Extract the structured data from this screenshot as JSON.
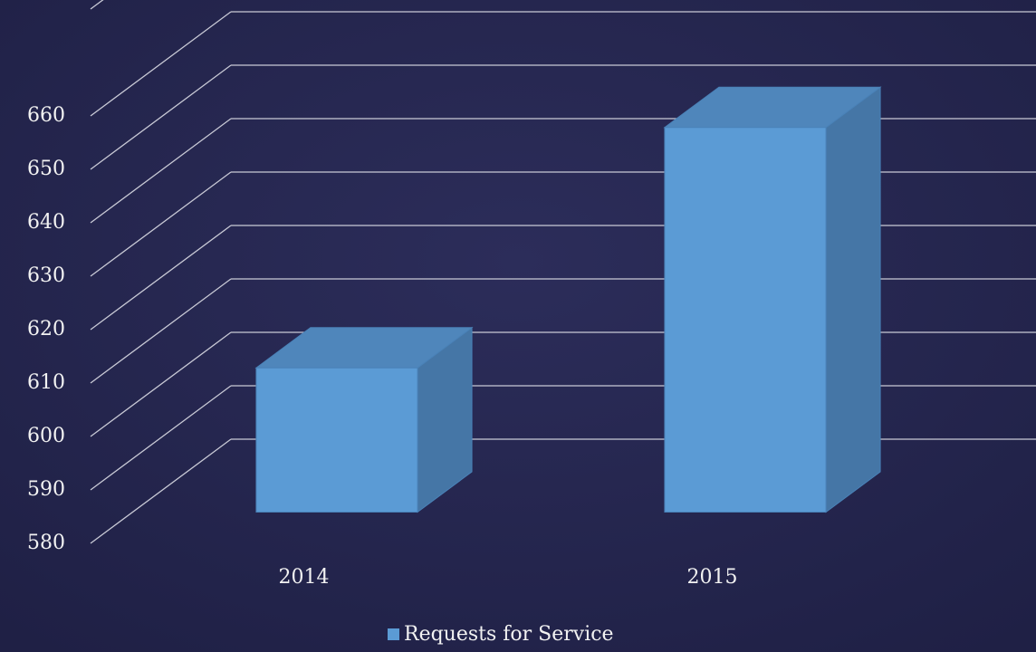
{
  "chart_data": {
    "type": "bar3d",
    "categories": [
      "2014",
      "2015"
    ],
    "series": [
      {
        "name": "Requests for Service",
        "color": "#5b9bd5",
        "values": [
          607,
          652
        ]
      }
    ],
    "ylim": [
      580,
      680
    ],
    "yticks": [
      580,
      590,
      600,
      610,
      620,
      630,
      640,
      650,
      660
    ],
    "grid": true,
    "legend": "bottom"
  }
}
